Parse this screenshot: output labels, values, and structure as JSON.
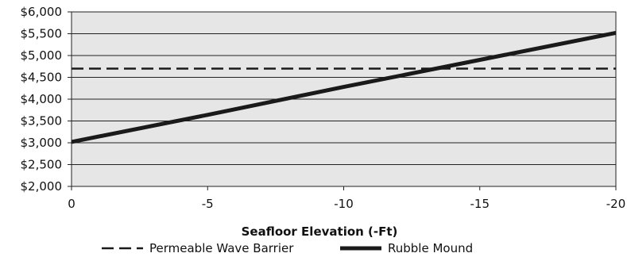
{
  "chart_data": {
    "type": "line",
    "xlabel": "Seafloor Elevation (-Ft)",
    "ylabel": "",
    "x_ticks": [
      "0",
      "-5",
      "-10",
      "-15",
      "-20"
    ],
    "x": [
      0,
      -5,
      -10,
      -15,
      -20
    ],
    "xlim": [
      0,
      -20
    ],
    "ylim": [
      2000,
      6000
    ],
    "y_ticks": [
      "$2,000",
      "$2,500",
      "$3,000",
      "$3,500",
      "$4,000",
      "$4,500",
      "$5,000",
      "$5,500",
      "$6,000"
    ],
    "y_tick_values": [
      2000,
      2500,
      3000,
      3500,
      4000,
      4500,
      5000,
      5500,
      6000
    ],
    "grid": true,
    "legend_position": "bottom",
    "series": [
      {
        "name": "Permeable Wave Barrier",
        "style": "dashed",
        "color": "#1a1a1a",
        "values": [
          4700,
          4700,
          4700,
          4700,
          4700
        ]
      },
      {
        "name": "Rubble Mound",
        "style": "solid",
        "color": "#1a1a1a",
        "values": [
          3020,
          3640,
          4280,
          4900,
          5520
        ]
      }
    ],
    "plot_background": "#e6e6e6"
  }
}
